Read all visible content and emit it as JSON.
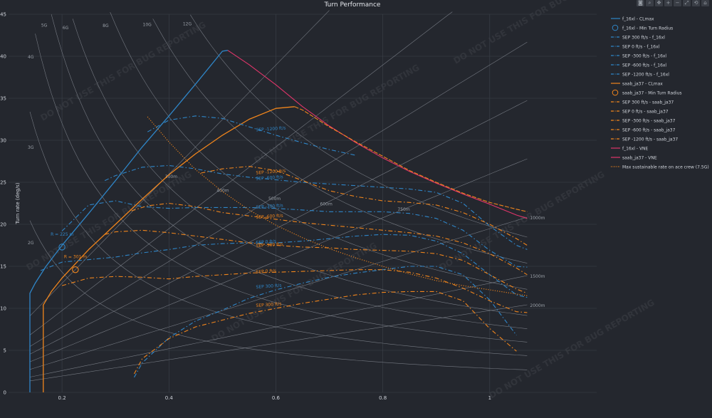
{
  "toolbar": [
    "camera-icon",
    "zoom-icon",
    "pan-icon",
    "plus-icon",
    "minus-icon",
    "autoscale-icon",
    "reset-icon",
    "home-icon"
  ],
  "watermark": "DO NOT USE THIS FOR BUG REPORTING",
  "colors": {
    "bg": "#24272e",
    "grid": "#3d424b",
    "f16": "#2f86c8",
    "saab": "#f0851c",
    "vne": "#e0356a",
    "text": "#cfd3da"
  },
  "chart_data": {
    "type": "line",
    "title": "Turn Performance",
    "xlabel": "",
    "ylabel": "Turn rate (deg/s)",
    "xlim": [
      0.1,
      1.2
    ],
    "ylim": [
      0,
      45
    ],
    "x_ticks": [
      0.2,
      0.4,
      0.6,
      0.8,
      1
    ],
    "y_ticks": [
      0,
      5,
      10,
      15,
      20,
      25,
      30,
      35,
      40,
      45
    ],
    "grid": true,
    "legend_position": "right",
    "legend": [
      {
        "name": "f_16xl - CLmax",
        "color": "#2f86c8",
        "style": "solid"
      },
      {
        "name": "f_16xl - Min Turn Radius",
        "color": "#2f86c8",
        "style": "circle"
      },
      {
        "name": "SEP 300 ft/s - f_16xl",
        "color": "#2f86c8",
        "style": "dashdot"
      },
      {
        "name": "SEP 0 ft/s - f_16xl",
        "color": "#2f86c8",
        "style": "dashdot"
      },
      {
        "name": "SEP -300 ft/s - f_16xl",
        "color": "#2f86c8",
        "style": "dashdot"
      },
      {
        "name": "SEP -600 ft/s - f_16xl",
        "color": "#2f86c8",
        "style": "dashdot"
      },
      {
        "name": "SEP -1200 ft/s - f_16xl",
        "color": "#2f86c8",
        "style": "dashdot"
      },
      {
        "name": "saab_ja37 - CLmax",
        "color": "#f0851c",
        "style": "solid"
      },
      {
        "name": "saab_ja37 - Min Turn Radius",
        "color": "#f0851c",
        "style": "circle"
      },
      {
        "name": "SEP 300 ft/s - saab_ja37",
        "color": "#f0851c",
        "style": "dashdot"
      },
      {
        "name": "SEP 0 ft/s - saab_ja37",
        "color": "#f0851c",
        "style": "dashdot"
      },
      {
        "name": "SEP -300 ft/s - saab_ja37",
        "color": "#f0851c",
        "style": "dashdot"
      },
      {
        "name": "SEP -600 ft/s - saab_ja37",
        "color": "#f0851c",
        "style": "dashdot"
      },
      {
        "name": "SEP -1200 ft/s - saab_ja37",
        "color": "#f0851c",
        "style": "dashdot"
      },
      {
        "name": "f_16xl - VNE",
        "color": "#e0356a",
        "style": "solid"
      },
      {
        "name": "saab_ja37 - VNE",
        "color": "#e0356a",
        "style": "solid"
      },
      {
        "name": "Max sustainable rate on ace crew (7.5G)",
        "color": "#f0851c",
        "style": "dotted"
      }
    ],
    "g_lines": [
      {
        "label": "2G",
        "g": 2
      },
      {
        "label": "3G",
        "g": 3
      },
      {
        "label": "4G",
        "g": 4
      },
      {
        "label": "5G",
        "g": 5
      },
      {
        "label": "6G",
        "g": 6
      },
      {
        "label": "8G",
        "g": 8
      },
      {
        "label": "10G",
        "g": 10
      },
      {
        "label": "12G",
        "g": 12
      }
    ],
    "radius_lines": [
      {
        "label": "300m",
        "r": 300
      },
      {
        "label": "400m",
        "r": 400
      },
      {
        "label": "500m",
        "r": 500
      },
      {
        "label": "600m",
        "r": 600
      },
      {
        "label": "750m",
        "r": 750
      },
      {
        "label": "1000m",
        "r": 1000
      },
      {
        "label": "1500m",
        "r": 1500
      },
      {
        "label": "2000m",
        "r": 2000
      }
    ],
    "series": [
      {
        "name": "f_16xl - CLmax",
        "color": "#2f86c8",
        "dash": "",
        "width": 1.3,
        "x": [
          0.14,
          0.14,
          0.15,
          0.17,
          0.2,
          0.25,
          0.3,
          0.35,
          0.4,
          0.45,
          0.5,
          0.51
        ],
        "y": [
          0,
          11.8,
          13.0,
          15.0,
          17.5,
          21.3,
          25.2,
          29.2,
          32.9,
          36.7,
          40.6,
          40.7
        ]
      },
      {
        "name": "f_16xl - VNE",
        "color": "#e0356a",
        "dash": "",
        "width": 1.1,
        "x": [
          0.51,
          0.55,
          0.6,
          0.65,
          0.7,
          0.75,
          0.8,
          0.85,
          0.9,
          0.95,
          1.0,
          1.05,
          1.07
        ],
        "y": [
          40.7,
          39.0,
          36.6,
          34.0,
          31.7,
          29.7,
          27.9,
          26.3,
          24.9,
          23.6,
          22.4,
          21.1,
          20.7
        ]
      },
      {
        "name": "saab_ja37 - CLmax",
        "color": "#f0851c",
        "dash": "",
        "width": 1.3,
        "x": [
          0.165,
          0.165,
          0.18,
          0.2,
          0.25,
          0.3,
          0.35,
          0.4,
          0.45,
          0.5,
          0.55,
          0.6,
          0.635
        ],
        "y": [
          0,
          10.4,
          12.0,
          13.6,
          17.0,
          20.0,
          23.0,
          25.9,
          28.4,
          30.6,
          32.5,
          33.8,
          34.0
        ]
      },
      {
        "name": "saab_ja37 - VNE",
        "color": "#f0851c",
        "dash": "6,2",
        "width": 1.1,
        "x": [
          0.635,
          0.65,
          0.7,
          0.75,
          0.8,
          0.85,
          0.9,
          0.95,
          1.0,
          1.05,
          1.07
        ],
        "y": [
          34.0,
          33.6,
          31.6,
          29.8,
          28.1,
          26.4,
          25.0,
          23.7,
          22.6,
          21.8,
          21.5
        ]
      },
      {
        "name": "SEP -1200 ft/s - f_16xl",
        "color": "#2f86c8",
        "dash": "6,3,1.5,3",
        "width": 1.1,
        "x": [
          0.36,
          0.4,
          0.45,
          0.5,
          0.55,
          0.6,
          0.65,
          0.7,
          0.75
        ],
        "y": [
          31.0,
          32.4,
          32.9,
          32.6,
          31.6,
          30.6,
          29.7,
          28.9,
          28.2
        ]
      },
      {
        "name": "SEP -600 ft/s - f_16xl",
        "color": "#2f86c8",
        "dash": "6,3,1.5,3",
        "width": 1.1,
        "x": [
          0.28,
          0.3,
          0.35,
          0.4,
          0.45,
          0.5,
          0.55,
          0.6,
          0.65,
          0.7,
          0.75,
          0.8,
          0.85,
          0.9,
          0.95,
          1.0,
          1.05,
          1.07
        ],
        "y": [
          25.2,
          25.8,
          26.8,
          27.0,
          26.6,
          26.0,
          25.6,
          25.3,
          25.0,
          24.8,
          24.6,
          24.4,
          24.2,
          23.8,
          22.5,
          19.8,
          17.5,
          17.0
        ]
      },
      {
        "name": "SEP -300 ft/s - f_16xl",
        "color": "#2f86c8",
        "dash": "6,3,1.5,3",
        "width": 1.1,
        "x": [
          0.2,
          0.25,
          0.3,
          0.35,
          0.4,
          0.45,
          0.5,
          0.55,
          0.6,
          0.65,
          0.7,
          0.75,
          0.8,
          0.85,
          0.9,
          0.95,
          1.0,
          1.05,
          1.07
        ],
        "y": [
          19.2,
          22.3,
          22.8,
          22.1,
          21.9,
          22.0,
          22.0,
          22.0,
          21.9,
          21.7,
          21.5,
          21.5,
          21.5,
          21.3,
          20.7,
          19.3,
          16.9,
          15.0,
          14.9
        ]
      },
      {
        "name": "SEP 0 ft/s - f_16xl",
        "color": "#2f86c8",
        "dash": "6,3,1.5,3",
        "width": 1.1,
        "x": [
          0.16,
          0.2,
          0.25,
          0.3,
          0.35,
          0.4,
          0.45,
          0.5,
          0.55,
          0.6,
          0.65,
          0.7,
          0.75,
          0.8,
          0.85,
          0.9,
          0.95,
          1.0,
          1.05,
          1.07
        ],
        "y": [
          14.5,
          15.5,
          15.8,
          16.1,
          16.6,
          17.0,
          17.5,
          17.7,
          17.8,
          17.8,
          18.0,
          18.3,
          18.6,
          18.8,
          18.7,
          18.0,
          16.5,
          14.0,
          11.6,
          11.3
        ]
      },
      {
        "name": "SEP 300 ft/s - f_16xl",
        "color": "#2f86c8",
        "dash": "6,3,1.5,3",
        "width": 1.1,
        "x": [
          0.335,
          0.35,
          0.4,
          0.45,
          0.5,
          0.55,
          0.6,
          0.65,
          0.7,
          0.75,
          0.8,
          0.85,
          0.9,
          0.95,
          1.0,
          1.05
        ],
        "y": [
          1.8,
          3.5,
          6.5,
          8.5,
          9.8,
          11.2,
          12.2,
          13.0,
          13.7,
          14.2,
          14.6,
          15.0,
          15.0,
          14.0,
          11.0,
          6.8
        ]
      },
      {
        "name": "SEP -1200 ft/s - saab_ja37",
        "color": "#f0851c",
        "dash": "6,3,1.5,3",
        "width": 1.1,
        "x": [
          0.46,
          0.5,
          0.55,
          0.6,
          0.65,
          0.7,
          0.75,
          0.8,
          0.85,
          0.9,
          0.95,
          1.0,
          1.05,
          1.07
        ],
        "y": [
          26.1,
          26.6,
          26.9,
          26.4,
          25.2,
          24.0,
          23.3,
          22.8,
          22.6,
          22.3,
          21.4,
          20.0,
          18.3,
          17.5
        ]
      },
      {
        "name": "SEP -600 ft/s - saab_ja37",
        "color": "#f0851c",
        "dash": "6,3,1.5,3",
        "width": 1.1,
        "x": [
          0.33,
          0.36,
          0.4,
          0.45,
          0.5,
          0.55,
          0.6,
          0.65,
          0.7,
          0.75,
          0.8,
          0.85,
          0.9,
          0.95,
          1.0,
          1.05,
          1.07
        ],
        "y": [
          21.6,
          22.2,
          22.5,
          22.1,
          21.4,
          21.0,
          20.6,
          20.2,
          19.9,
          19.6,
          19.3,
          19.0,
          18.6,
          17.8,
          16.5,
          14.8,
          14.0
        ]
      },
      {
        "name": "SEP -300 ft/s - saab_ja37",
        "color": "#f0851c",
        "dash": "6,3,1.5,3",
        "width": 1.1,
        "x": [
          0.28,
          0.3,
          0.35,
          0.4,
          0.45,
          0.5,
          0.55,
          0.6,
          0.65,
          0.7,
          0.75,
          0.8,
          0.85,
          0.9,
          0.95,
          1.0,
          1.05,
          1.07
        ],
        "y": [
          18.8,
          19.1,
          19.3,
          19.0,
          18.6,
          18.2,
          17.8,
          17.5,
          17.3,
          17.2,
          17.0,
          16.9,
          16.8,
          16.5,
          15.7,
          14.0,
          12.3,
          11.8
        ]
      },
      {
        "name": "SEP 0 ft/s - saab_ja37",
        "color": "#f0851c",
        "dash": "6,3,1.5,3",
        "width": 1.1,
        "x": [
          0.2,
          0.25,
          0.3,
          0.35,
          0.4,
          0.45,
          0.5,
          0.55,
          0.6,
          0.65,
          0.7,
          0.75,
          0.8,
          0.85,
          0.9,
          0.95,
          1.0,
          1.05,
          1.07
        ],
        "y": [
          12.7,
          13.6,
          13.8,
          13.7,
          13.5,
          13.8,
          14.0,
          14.2,
          14.3,
          14.4,
          14.5,
          14.6,
          14.6,
          14.3,
          13.6,
          12.4,
          10.9,
          9.6,
          9.5
        ]
      },
      {
        "name": "SEP 300 ft/s - saab_ja37",
        "color": "#f0851c",
        "dash": "6,3,1.5,3",
        "width": 1.1,
        "x": [
          0.335,
          0.35,
          0.4,
          0.45,
          0.5,
          0.55,
          0.6,
          0.65,
          0.7,
          0.75,
          0.8,
          0.85,
          0.9,
          0.95,
          1.0,
          1.05
        ],
        "y": [
          2.2,
          4.0,
          6.4,
          7.8,
          8.6,
          9.4,
          10.0,
          10.6,
          11.1,
          11.6,
          11.9,
          12.0,
          12.0,
          10.9,
          7.6,
          4.9
        ]
      },
      {
        "name": "Max sustainable rate on ace crew (7.5G)",
        "color": "#f0851c",
        "dash": "1.2,2",
        "width": 1.1,
        "x": [
          0.36,
          0.4,
          0.45,
          0.5,
          0.55,
          0.6,
          0.65,
          0.7,
          0.75,
          0.8,
          0.85,
          0.9,
          0.95,
          1.0,
          1.05,
          1.07
        ],
        "y": [
          32.8,
          29.8,
          26.5,
          23.9,
          21.7,
          19.9,
          18.4,
          17.1,
          16.0,
          15.0,
          14.1,
          13.3,
          12.7,
          12.2,
          11.7,
          11.5
        ]
      }
    ],
    "markers": [
      {
        "name": "f_16xl - Min Turn Radius",
        "x": 0.2,
        "y": 17.3,
        "color": "#2f86c8",
        "label": "R = 225 m"
      },
      {
        "name": "saab_ja37 - Min Turn Radius",
        "x": 0.225,
        "y": 14.6,
        "color": "#f0851c",
        "label": "R = 301 m"
      }
    ],
    "annotations": [
      {
        "text": "SEP -1200 ft/s",
        "x": 0.6,
        "y": 31.4,
        "color": "#2f86c8"
      },
      {
        "text": "SEP -1200 ft/s",
        "x": 0.6,
        "y": 26.3,
        "color": "#f0851c"
      },
      {
        "text": "SEP -600 ft/s",
        "x": 0.6,
        "y": 25.6,
        "color": "#2f86c8"
      },
      {
        "text": "SEP -300 ft/s",
        "x": 0.6,
        "y": 22.2,
        "color": "#2f86c8"
      },
      {
        "text": "SEP -600 ft/s",
        "x": 0.6,
        "y": 21.0,
        "color": "#f0851c"
      },
      {
        "text": "SEP 0 ft/s",
        "x": 0.6,
        "y": 18.0,
        "color": "#2f86c8"
      },
      {
        "text": "SEP -300 ft/s",
        "x": 0.6,
        "y": 17.6,
        "color": "#f0851c"
      },
      {
        "text": "SEP 0 ft/s",
        "x": 0.6,
        "y": 14.5,
        "color": "#f0851c"
      },
      {
        "text": "SEP 300 ft/s",
        "x": 0.6,
        "y": 12.7,
        "color": "#2f86c8"
      },
      {
        "text": "SEP 300 ft/s",
        "x": 0.6,
        "y": 10.5,
        "color": "#f0851c"
      }
    ]
  }
}
